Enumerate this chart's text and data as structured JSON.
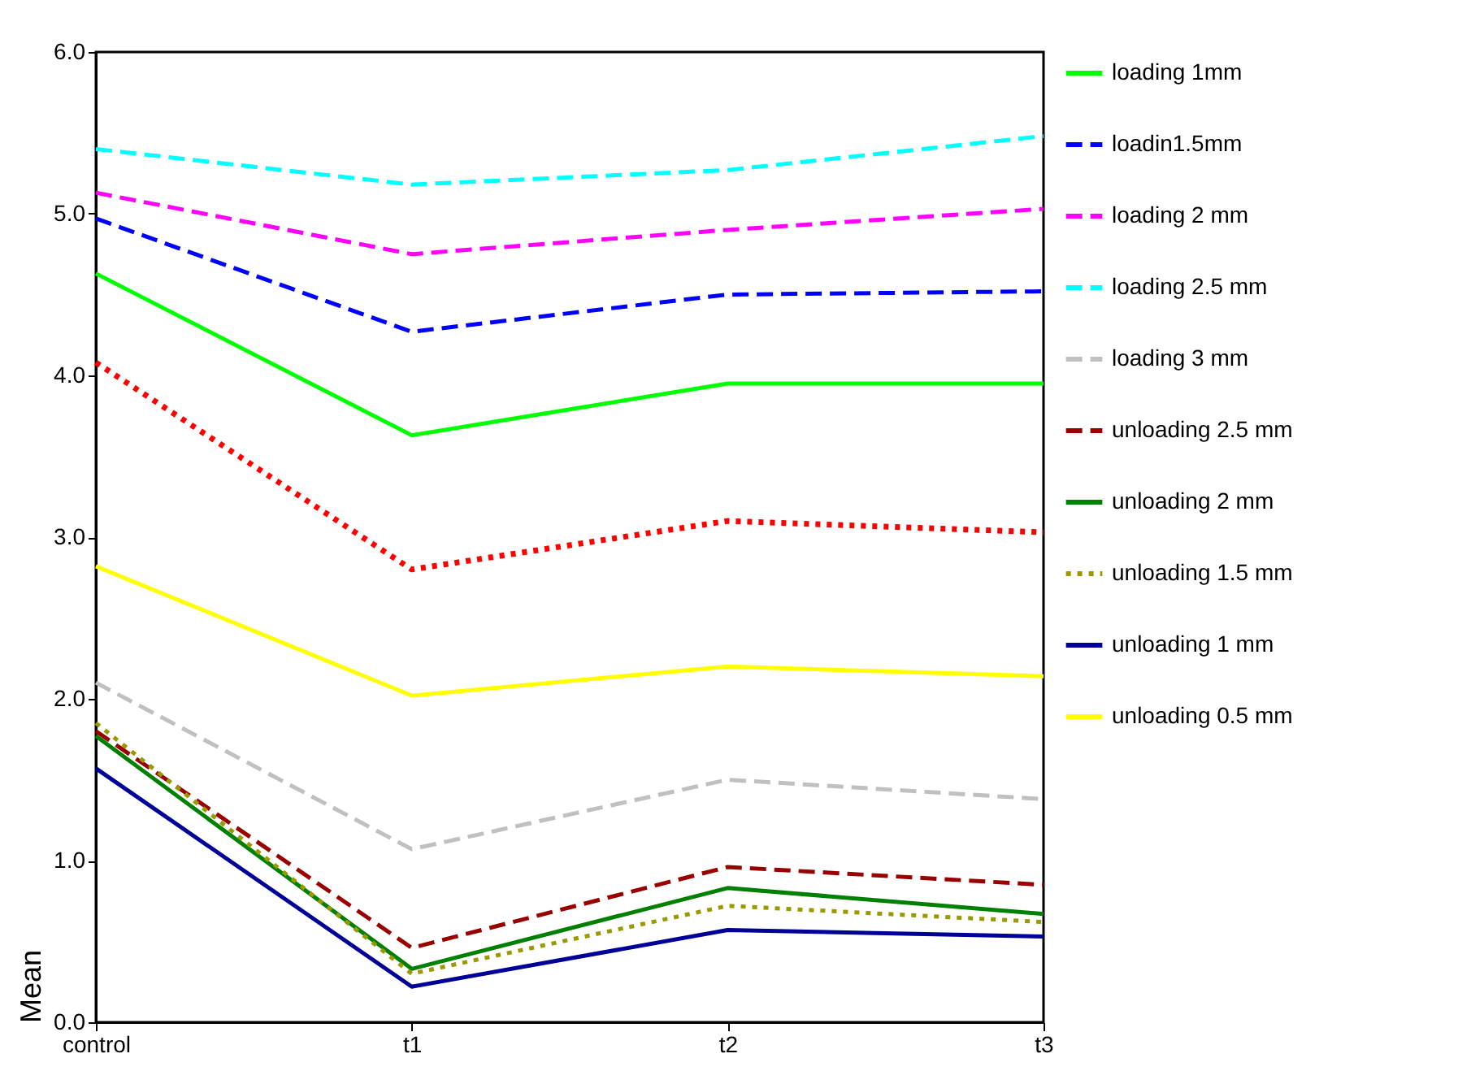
{
  "chart_data": {
    "type": "line",
    "ylabel": "Mean",
    "categories": [
      "control",
      "t1",
      "t2",
      "t3"
    ],
    "ylim": [
      0,
      6
    ],
    "yticks": [
      {
        "value": 0,
        "label": "0.0"
      },
      {
        "value": 1,
        "label": "1.0"
      },
      {
        "value": 2,
        "label": "2.0"
      },
      {
        "value": 3,
        "label": "3.0"
      },
      {
        "value": 4,
        "label": "4.0"
      },
      {
        "value": 5,
        "label": "5.0"
      },
      {
        "value": 6,
        "label": "6.0"
      }
    ],
    "grid": false,
    "legend": "right",
    "marker": "none",
    "series": [
      {
        "name": "loading 1mm",
        "color": "#00ff00",
        "line_style": "solid",
        "values": [
          4.63,
          3.63,
          3.95,
          3.95
        ]
      },
      {
        "name": "loadin1.5mm",
        "color": "#0000ff",
        "line_style": "dashed",
        "values": [
          4.97,
          4.27,
          4.5,
          4.52
        ]
      },
      {
        "name": "loading 2 mm",
        "color": "#ff00ff",
        "line_style": "dashed",
        "values": [
          5.13,
          4.75,
          4.9,
          5.03
        ]
      },
      {
        "name": "loading 2.5 mm",
        "color": "#00ffff",
        "line_style": "dashed",
        "values": [
          5.4,
          5.18,
          5.27,
          5.48
        ]
      },
      {
        "name": "loading 3 mm",
        "color": "#c0c0c0",
        "line_style": "dashed",
        "values": [
          2.1,
          1.07,
          1.5,
          1.38
        ]
      },
      {
        "name": "unloading 2.5 mm",
        "color": "#990000",
        "line_style": "dashed",
        "values": [
          1.8,
          0.46,
          0.96,
          0.85
        ]
      },
      {
        "name": "unloading 2 mm",
        "color": "#008000",
        "line_style": "solid",
        "values": [
          1.77,
          0.33,
          0.83,
          0.67
        ]
      },
      {
        "name": "unloading 1.5 mm",
        "color": "#999900",
        "line_style": "dotted",
        "values": [
          1.85,
          0.3,
          0.72,
          0.62
        ]
      },
      {
        "name": "unloading 1 mm",
        "color": "#000099",
        "line_style": "solid",
        "values": [
          1.57,
          0.22,
          0.57,
          0.53
        ]
      },
      {
        "name": "unloading 0.5 mm",
        "color": "#ffff00",
        "line_style": "solid",
        "values": [
          2.82,
          2.02,
          2.2,
          2.14
        ]
      },
      {
        "color": "#ff0000",
        "line_style": "dotted",
        "values": [
          4.08,
          2.8,
          3.1,
          3.03
        ]
      }
    ]
  }
}
